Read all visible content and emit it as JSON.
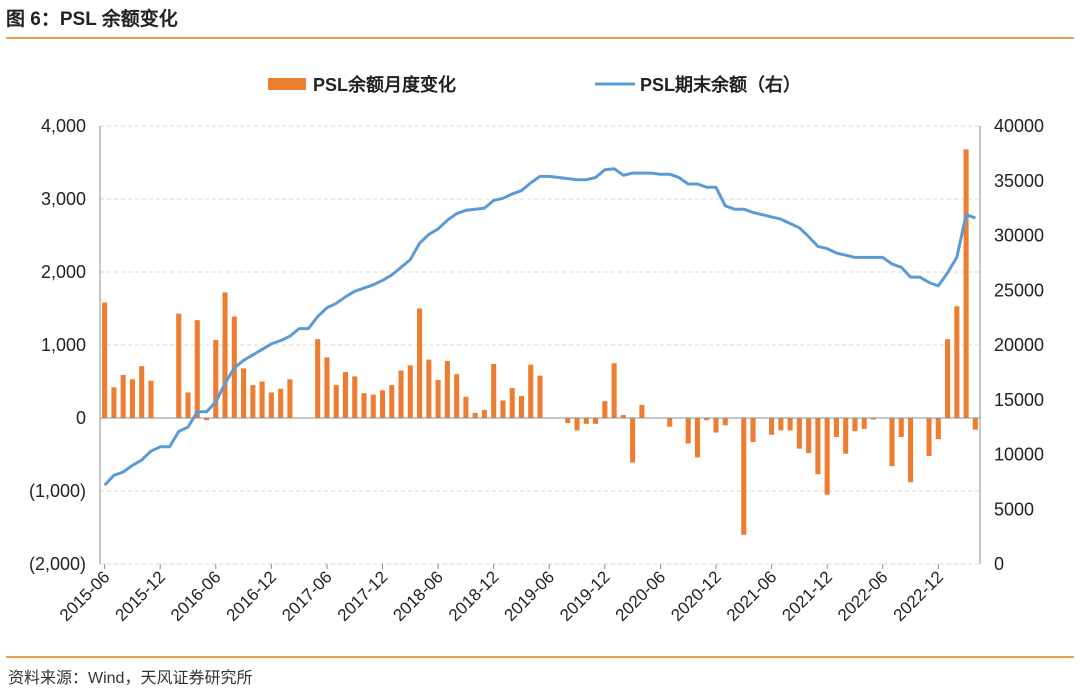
{
  "figure": {
    "title": "图 6：PSL 余额变化",
    "source": "资料来源：Wind，天风证券研究所"
  },
  "colors": {
    "bar": "#ed7d31",
    "line": "#5b9bd5",
    "accent_rule": "#e6a24c",
    "grid": "#d9d9d9"
  },
  "chart_data": {
    "type": "bar+line",
    "legend_position": "top-center",
    "grid": true,
    "x_tick_labels": [
      "2015-06",
      "2015-12",
      "2016-06",
      "2016-12",
      "2017-06",
      "2017-12",
      "2018-06",
      "2018-12",
      "2019-06",
      "2019-12",
      "2020-06",
      "2020-12",
      "2021-06",
      "2021-12",
      "2022-06",
      "2022-12"
    ],
    "y_left": {
      "ticks": [
        "(2,000)",
        "(1,000)",
        "0",
        "1,000",
        "2,000",
        "3,000",
        "4,000"
      ],
      "lim": [
        -2000,
        4000
      ]
    },
    "y_right": {
      "ticks": [
        "0",
        "5000",
        "10000",
        "15000",
        "20000",
        "25000",
        "30000",
        "35000",
        "40000"
      ],
      "lim": [
        0,
        40000
      ]
    },
    "series": [
      {
        "name": "PSL余额月度变化",
        "kind": "bar",
        "axis": "left",
        "values": [
          1580,
          420,
          590,
          530,
          710,
          510,
          0,
          0,
          1430,
          350,
          1340,
          -30,
          1070,
          1720,
          1390,
          680,
          450,
          500,
          350,
          400,
          530,
          0,
          0,
          1080,
          830,
          450,
          630,
          570,
          340,
          320,
          380,
          450,
          650,
          720,
          1500,
          800,
          520,
          780,
          600,
          290,
          70,
          110,
          740,
          240,
          410,
          300,
          730,
          580,
          0,
          0,
          -70,
          -170,
          -80,
          -80,
          230,
          750,
          40,
          -610,
          180,
          0,
          0,
          -120,
          0,
          -350,
          -540,
          -30,
          -200,
          -100,
          0,
          -1600,
          -330,
          0,
          -230,
          -170,
          -170,
          -420,
          -480,
          -770,
          -1050,
          -260,
          -490,
          -180,
          -150,
          -20,
          0,
          -660,
          -260,
          -880,
          0,
          -520,
          -290,
          1080,
          1530,
          3680,
          -160
        ]
      },
      {
        "name": "PSL期末余额（右）",
        "kind": "line",
        "axis": "right",
        "values": [
          7200,
          8100,
          8400,
          9000,
          9500,
          10300,
          10700,
          10700,
          12100,
          12500,
          13900,
          13900,
          14800,
          16500,
          17900,
          18600,
          19100,
          19600,
          20100,
          20400,
          20800,
          21500,
          21500,
          22600,
          23400,
          23800,
          24400,
          24900,
          25200,
          25500,
          25900,
          26400,
          27100,
          27800,
          29300,
          30100,
          30600,
          31400,
          32000,
          32300,
          32400,
          32500,
          33200,
          33400,
          33800,
          34100,
          34800,
          35400,
          35400,
          35300,
          35200,
          35100,
          35100,
          35300,
          36000,
          36100,
          35500,
          35700,
          35700,
          35700,
          35600,
          35600,
          35300,
          34700,
          34700,
          34400,
          34400,
          32700,
          32400,
          32400,
          32100,
          31900,
          31700,
          31500,
          31100,
          30700,
          29900,
          29000,
          28800,
          28400,
          28200,
          28000,
          28000,
          28000,
          28000,
          27400,
          27100,
          26200,
          26200,
          25700,
          25400,
          26600,
          28000,
          31900,
          31600
        ]
      }
    ]
  }
}
